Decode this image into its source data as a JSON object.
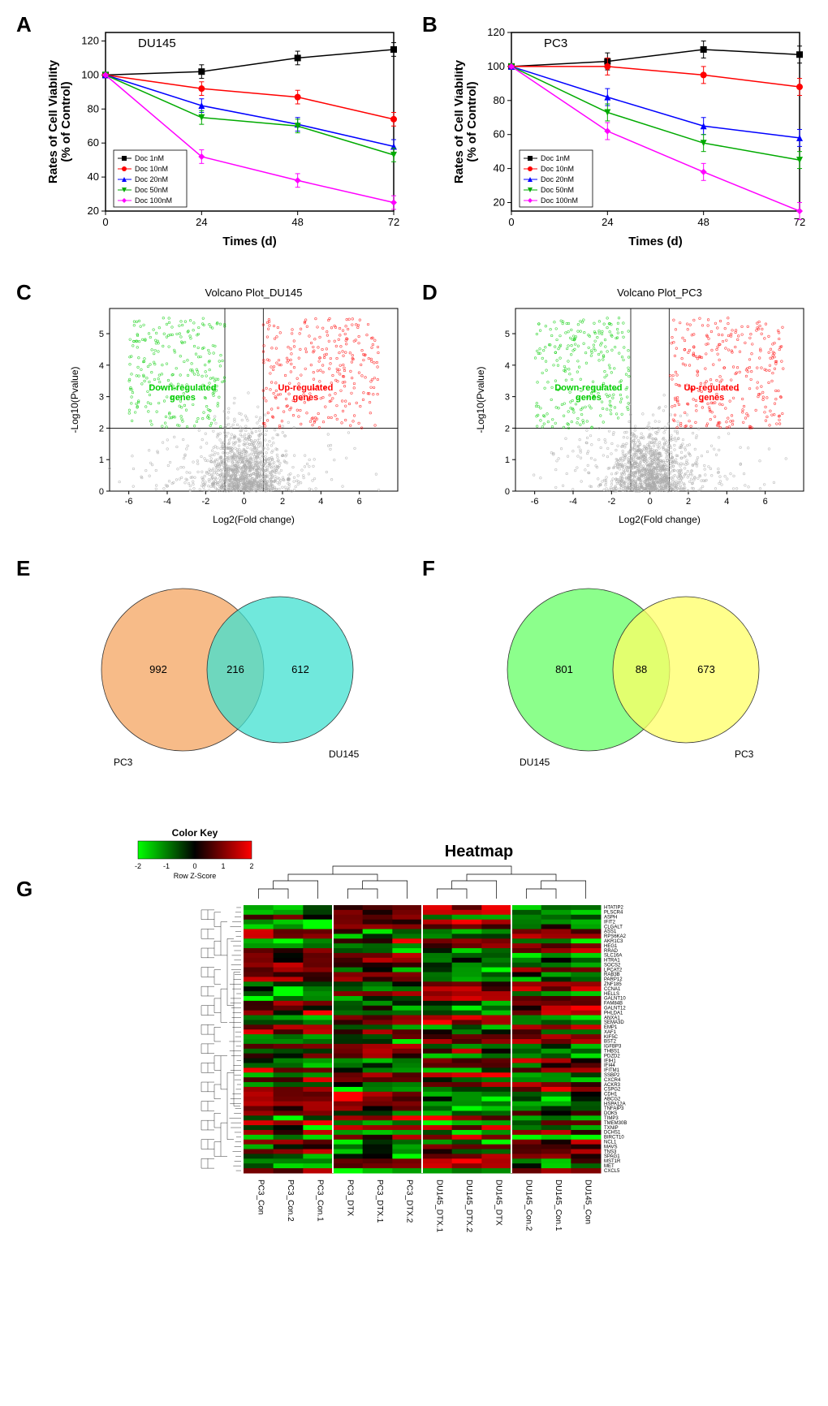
{
  "panelA": {
    "label": "A",
    "title": "DU145",
    "type": "line",
    "xlabel": "Times (d)",
    "ylabel": "Rates of Cell Viability\n(% of Control)",
    "xticks": [
      0,
      24,
      48,
      72
    ],
    "yticks": [
      20,
      40,
      60,
      80,
      100,
      120
    ],
    "xlim": [
      0,
      72
    ],
    "ylim": [
      20,
      125
    ],
    "series": [
      {
        "name": "Doc 1nM",
        "color": "#000000",
        "marker": "square",
        "y": [
          100,
          102,
          110,
          115
        ]
      },
      {
        "name": "Doc 10nM",
        "color": "#ff0000",
        "marker": "circle",
        "y": [
          100,
          92,
          87,
          74
        ]
      },
      {
        "name": "Doc 20nM",
        "color": "#0000ff",
        "marker": "triangle",
        "y": [
          100,
          82,
          71,
          58
        ]
      },
      {
        "name": "Doc 50nM",
        "color": "#00aa00",
        "marker": "invtri",
        "y": [
          100,
          75,
          70,
          53
        ]
      },
      {
        "name": "Doc 100nM",
        "color": "#ff00ff",
        "marker": "diamond",
        "y": [
          100,
          52,
          38,
          25
        ]
      }
    ],
    "x": [
      0,
      24,
      48,
      72
    ],
    "err": 4
  },
  "panelB": {
    "label": "B",
    "title": "PC3",
    "type": "line",
    "xlabel": "Times (d)",
    "ylabel": "Rates of Cell Viability\n(% of Control)",
    "xticks": [
      0,
      24,
      48,
      72
    ],
    "yticks": [
      20,
      40,
      60,
      80,
      100,
      120
    ],
    "xlim": [
      0,
      72
    ],
    "ylim": [
      15,
      120
    ],
    "series": [
      {
        "name": "Doc 1nM",
        "color": "#000000",
        "marker": "square",
        "y": [
          100,
          103,
          110,
          107
        ]
      },
      {
        "name": "Doc 10nM",
        "color": "#ff0000",
        "marker": "circle",
        "y": [
          100,
          100,
          95,
          88
        ]
      },
      {
        "name": "Doc 20nM",
        "color": "#0000ff",
        "marker": "triangle",
        "y": [
          100,
          82,
          65,
          58
        ]
      },
      {
        "name": "Doc 50nM",
        "color": "#00aa00",
        "marker": "invtri",
        "y": [
          100,
          73,
          55,
          45
        ]
      },
      {
        "name": "Doc 100nM",
        "color": "#ff00ff",
        "marker": "diamond",
        "y": [
          100,
          62,
          38,
          15
        ]
      }
    ],
    "x": [
      0,
      24,
      48,
      72
    ],
    "err": 5
  },
  "panelC": {
    "label": "C",
    "title": "Volcano Plot_DU145",
    "type": "scatter",
    "xlabel": "Log2(Fold change)",
    "ylabel": "-Log10(Pvalue)",
    "xticks": [
      -6,
      -4,
      -2,
      0,
      2,
      4,
      6
    ],
    "yticks": [
      0,
      1,
      2,
      3,
      4,
      5
    ],
    "xlim": [
      -7,
      8
    ],
    "ylim": [
      0,
      5.8
    ],
    "threshold_x": [
      -1,
      1
    ],
    "threshold_y": 2,
    "down_label": "Down-regulated\ngenes",
    "up_label": "Up-regulated\ngenes",
    "colors": {
      "down": "#00cc00",
      "up": "#ff0000",
      "ns": "#aaaaaa"
    }
  },
  "panelD": {
    "label": "D",
    "title": "Volcano Plot_PC3",
    "type": "scatter",
    "xlabel": "Log2(Fold change)",
    "ylabel": "-Log10(Pvalue)",
    "xticks": [
      -6,
      -4,
      -2,
      0,
      2,
      4,
      6
    ],
    "yticks": [
      0,
      1,
      2,
      3,
      4,
      5
    ],
    "xlim": [
      -7,
      8
    ],
    "ylim": [
      0,
      5.8
    ],
    "threshold_x": [
      -1,
      1
    ],
    "threshold_y": 2,
    "down_label": "Down-regulated\ngenes",
    "up_label": "Up-regulated\ngenes",
    "colors": {
      "down": "#00cc00",
      "up": "#ff0000",
      "ns": "#aaaaaa"
    }
  },
  "panelE": {
    "label": "E",
    "type": "venn",
    "left": {
      "label": "PC3",
      "color": "#f4a460",
      "value": 992
    },
    "right": {
      "label": "DU145",
      "color": "#40e0d0",
      "value": 612
    },
    "overlap": 216,
    "opacity": 0.75
  },
  "panelF": {
    "label": "F",
    "type": "venn",
    "left": {
      "label": "DU145",
      "color": "#66ff66",
      "value": 801
    },
    "right": {
      "label": "PC3",
      "color": "#ffff66",
      "value": 673
    },
    "overlap": 88,
    "opacity": 0.75
  },
  "panelG": {
    "label": "G",
    "title": "Heatmap",
    "type": "heatmap",
    "color_key_label": "Color Key",
    "row_label": "Row Z-Score",
    "key_ticks": [
      -2,
      -1,
      0,
      1,
      2
    ],
    "color_low": "#00ff00",
    "color_mid": "#000000",
    "color_high": "#ff0000",
    "columns": [
      "PC3_Con",
      "PC3_Con.2",
      "PC3_Con.1",
      "PC3_DTX",
      "PC3_DTX.1",
      "PC3_DTX.2",
      "DU145_DTX.1",
      "DU145_DTX.2",
      "DU145_DTX",
      "DU145_Con.2",
      "DU145_Con.1",
      "DU145_Con"
    ],
    "genes": [
      "HTATIP2",
      "PLSCR4",
      "ASPH",
      "IFIT2",
      "CLGALT",
      "ASS1",
      "RPS6KA2",
      "AKR1C3",
      "HEG1",
      "RRAD",
      "SLC16A",
      "HTRA1",
      "SOCS2",
      "LPCAT2",
      "RAB3B",
      "PARP12",
      "ZNF185",
      "CCNA1",
      "HELLS",
      "GALNT10",
      "FAM84B",
      "GALNT12",
      "PHLDA1",
      "ANXA1",
      "SEMA3D",
      "EMP1",
      "XAF1",
      "KIF5C",
      "BST2",
      "IGFBP3",
      "THBS1",
      "PDZD2",
      "IFIH1",
      "IFI44",
      "IFITM1",
      "SSBP2",
      "CXCR4",
      "ACKR3",
      "CSPG2",
      "CDH1",
      "ABCG2",
      "HSPA12A",
      "TNFAIP3",
      "DOK5",
      "TIMP3",
      "TMEM30B",
      "TXNIP",
      "DCHS1",
      "BIRCT10",
      "NCL1",
      "MAVS",
      "TNS3",
      "SPAG1",
      "MST1R",
      "MET",
      "CXCL5"
    ],
    "n_rows": 56,
    "n_cols": 12,
    "dendro_height": 60
  }
}
